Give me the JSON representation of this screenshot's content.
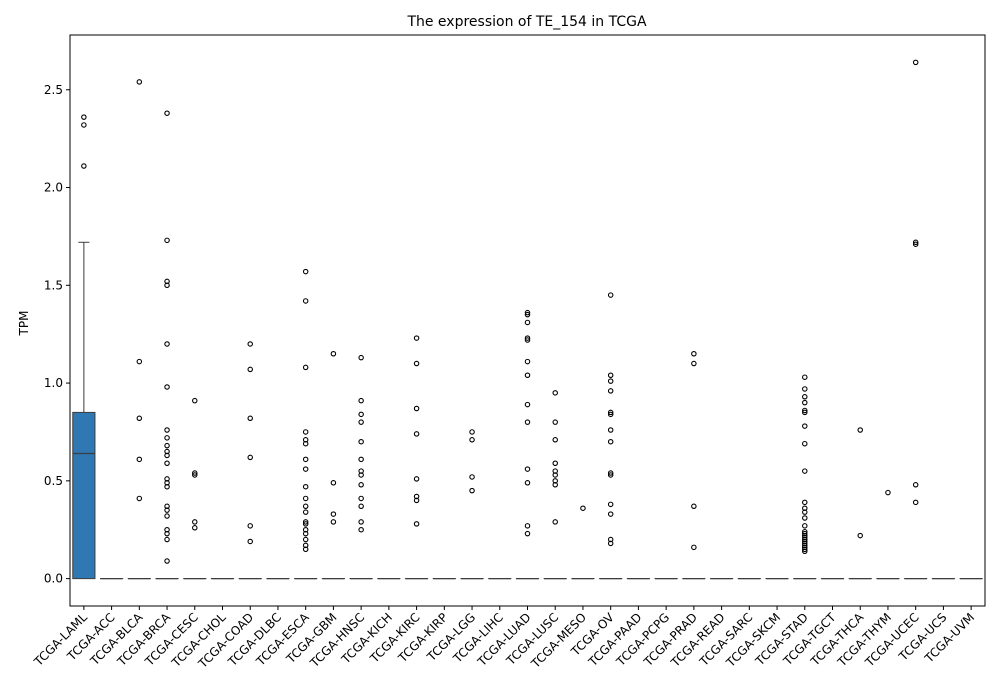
{
  "chart_data": {
    "type": "box",
    "title": "The expression of TE_154 in TCGA",
    "xlabel": "",
    "ylabel": "TPM",
    "ylim": [
      -0.14,
      2.78
    ],
    "yticks": [
      "0.0",
      "0.5",
      "1.0",
      "1.5",
      "2.0",
      "2.5"
    ],
    "grid": false,
    "colors": {
      "box_fill": "#2f78b4",
      "line": "#3d3d3d",
      "outlier": "#000000"
    },
    "categories": [
      "TCGA-LAML",
      "TCGA-ACC",
      "TCGA-BLCA",
      "TCGA-BRCA",
      "TCGA-CESC",
      "TCGA-CHOL",
      "TCGA-COAD",
      "TCGA-DLBC",
      "TCGA-ESCA",
      "TCGA-GBM",
      "TCGA-HNSC",
      "TCGA-KICH",
      "TCGA-KIRC",
      "TCGA-KIRP",
      "TCGA-LGG",
      "TCGA-LIHC",
      "TCGA-LUAD",
      "TCGA-LUSC",
      "TCGA-MESO",
      "TCGA-OV",
      "TCGA-PAAD",
      "TCGA-PCPG",
      "TCGA-PRAD",
      "TCGA-READ",
      "TCGA-SARC",
      "TCGA-SKCM",
      "TCGA-STAD",
      "TCGA-TGCT",
      "TCGA-THCA",
      "TCGA-THYM",
      "TCGA-UCEC",
      "TCGA-UCS",
      "TCGA-UVM"
    ],
    "boxes": [
      {
        "q1": 0,
        "median": 0.64,
        "q3": 0.85,
        "whislo": 0,
        "whishi": 1.72,
        "outliers": [
          2.11,
          2.32,
          2.36
        ]
      },
      {
        "q1": 0,
        "median": 0,
        "q3": 0,
        "whislo": 0,
        "whishi": 0,
        "outliers": []
      },
      {
        "q1": 0,
        "median": 0,
        "q3": 0,
        "whislo": 0,
        "whishi": 0,
        "outliers": [
          0.41,
          0.61,
          0.82,
          1.11,
          2.54
        ]
      },
      {
        "q1": 0,
        "median": 0,
        "q3": 0,
        "whislo": 0,
        "whishi": 0,
        "outliers": [
          0.09,
          0.2,
          0.23,
          0.25,
          0.32,
          0.35,
          0.37,
          0.47,
          0.49,
          0.51,
          0.59,
          0.63,
          0.65,
          0.68,
          0.72,
          0.76,
          0.98,
          1.2,
          1.5,
          1.52,
          1.73,
          2.38
        ]
      },
      {
        "q1": 0,
        "median": 0,
        "q3": 0,
        "whislo": 0,
        "whishi": 0,
        "outliers": [
          0.26,
          0.29,
          0.53,
          0.54,
          0.91
        ]
      },
      {
        "q1": 0,
        "median": 0,
        "q3": 0,
        "whislo": 0,
        "whishi": 0,
        "outliers": []
      },
      {
        "q1": 0,
        "median": 0,
        "q3": 0,
        "whislo": 0,
        "whishi": 0,
        "outliers": [
          0.19,
          0.27,
          0.62,
          0.82,
          1.07,
          1.2
        ]
      },
      {
        "q1": 0,
        "median": 0,
        "q3": 0,
        "whislo": 0,
        "whishi": 0,
        "outliers": []
      },
      {
        "q1": 0,
        "median": 0,
        "q3": 0,
        "whislo": 0,
        "whishi": 0,
        "outliers": [
          0.15,
          0.17,
          0.2,
          0.23,
          0.25,
          0.28,
          0.29,
          0.34,
          0.37,
          0.41,
          0.47,
          0.56,
          0.61,
          0.69,
          0.71,
          0.75,
          1.08,
          1.42,
          1.57
        ]
      },
      {
        "q1": 0,
        "median": 0,
        "q3": 0,
        "whislo": 0,
        "whishi": 0,
        "outliers": [
          0.29,
          0.33,
          0.49,
          1.15
        ]
      },
      {
        "q1": 0,
        "median": 0,
        "q3": 0,
        "whislo": 0,
        "whishi": 0,
        "outliers": [
          0.25,
          0.29,
          0.37,
          0.41,
          0.48,
          0.53,
          0.55,
          0.61,
          0.7,
          0.8,
          0.84,
          0.91,
          1.13
        ]
      },
      {
        "q1": 0,
        "median": 0,
        "q3": 0,
        "whislo": 0,
        "whishi": 0,
        "outliers": []
      },
      {
        "q1": 0,
        "median": 0,
        "q3": 0,
        "whislo": 0,
        "whishi": 0,
        "outliers": [
          0.28,
          0.4,
          0.42,
          0.51,
          0.74,
          0.87,
          1.1,
          1.23
        ]
      },
      {
        "q1": 0,
        "median": 0,
        "q3": 0,
        "whislo": 0,
        "whishi": 0,
        "outliers": []
      },
      {
        "q1": 0,
        "median": 0,
        "q3": 0,
        "whislo": 0,
        "whishi": 0,
        "outliers": [
          0.45,
          0.52,
          0.71,
          0.75
        ]
      },
      {
        "q1": 0,
        "median": 0,
        "q3": 0,
        "whislo": 0,
        "whishi": 0,
        "outliers": []
      },
      {
        "q1": 0,
        "median": 0,
        "q3": 0,
        "whislo": 0,
        "whishi": 0,
        "outliers": [
          0.23,
          0.27,
          0.49,
          0.56,
          0.8,
          0.89,
          1.04,
          1.11,
          1.22,
          1.23,
          1.31,
          1.35,
          1.36
        ]
      },
      {
        "q1": 0,
        "median": 0,
        "q3": 0,
        "whislo": 0,
        "whishi": 0,
        "outliers": [
          0.29,
          0.48,
          0.5,
          0.53,
          0.55,
          0.59,
          0.71,
          0.8,
          0.95
        ]
      },
      {
        "q1": 0,
        "median": 0,
        "q3": 0,
        "whislo": 0,
        "whishi": 0,
        "outliers": [
          0.36
        ]
      },
      {
        "q1": 0,
        "median": 0,
        "q3": 0,
        "whislo": 0,
        "whishi": 0,
        "outliers": [
          0.18,
          0.2,
          0.33,
          0.38,
          0.53,
          0.54,
          0.7,
          0.76,
          0.84,
          0.85,
          0.96,
          1.01,
          1.04,
          1.45
        ]
      },
      {
        "q1": 0,
        "median": 0,
        "q3": 0,
        "whislo": 0,
        "whishi": 0,
        "outliers": []
      },
      {
        "q1": 0,
        "median": 0,
        "q3": 0,
        "whislo": 0,
        "whishi": 0,
        "outliers": []
      },
      {
        "q1": 0,
        "median": 0,
        "q3": 0,
        "whislo": 0,
        "whishi": 0,
        "outliers": [
          0.16,
          0.37,
          1.1,
          1.15
        ]
      },
      {
        "q1": 0,
        "median": 0,
        "q3": 0,
        "whislo": 0,
        "whishi": 0,
        "outliers": []
      },
      {
        "q1": 0,
        "median": 0,
        "q3": 0,
        "whislo": 0,
        "whishi": 0,
        "outliers": []
      },
      {
        "q1": 0,
        "median": 0,
        "q3": 0,
        "whislo": 0,
        "whishi": 0,
        "outliers": []
      },
      {
        "q1": 0,
        "median": 0,
        "q3": 0,
        "whislo": 0,
        "whishi": 0,
        "outliers": [
          0.14,
          0.15,
          0.16,
          0.17,
          0.18,
          0.19,
          0.2,
          0.21,
          0.22,
          0.23,
          0.24,
          0.27,
          0.31,
          0.34,
          0.36,
          0.39,
          0.55,
          0.69,
          0.78,
          0.85,
          0.86,
          0.9,
          0.93,
          0.97,
          1.03
        ]
      },
      {
        "q1": 0,
        "median": 0,
        "q3": 0,
        "whislo": 0,
        "whishi": 0,
        "outliers": []
      },
      {
        "q1": 0,
        "median": 0,
        "q3": 0,
        "whislo": 0,
        "whishi": 0,
        "outliers": [
          0.22,
          0.76
        ]
      },
      {
        "q1": 0,
        "median": 0,
        "q3": 0,
        "whislo": 0,
        "whishi": 0,
        "outliers": [
          0.44
        ]
      },
      {
        "q1": 0,
        "median": 0,
        "q3": 0,
        "whislo": 0,
        "whishi": 0,
        "outliers": [
          0.39,
          0.48,
          1.71,
          1.72,
          2.64
        ]
      },
      {
        "q1": 0,
        "median": 0,
        "q3": 0,
        "whislo": 0,
        "whishi": 0,
        "outliers": []
      },
      {
        "q1": 0,
        "median": 0,
        "q3": 0,
        "whislo": 0,
        "whishi": 0,
        "outliers": []
      }
    ]
  }
}
